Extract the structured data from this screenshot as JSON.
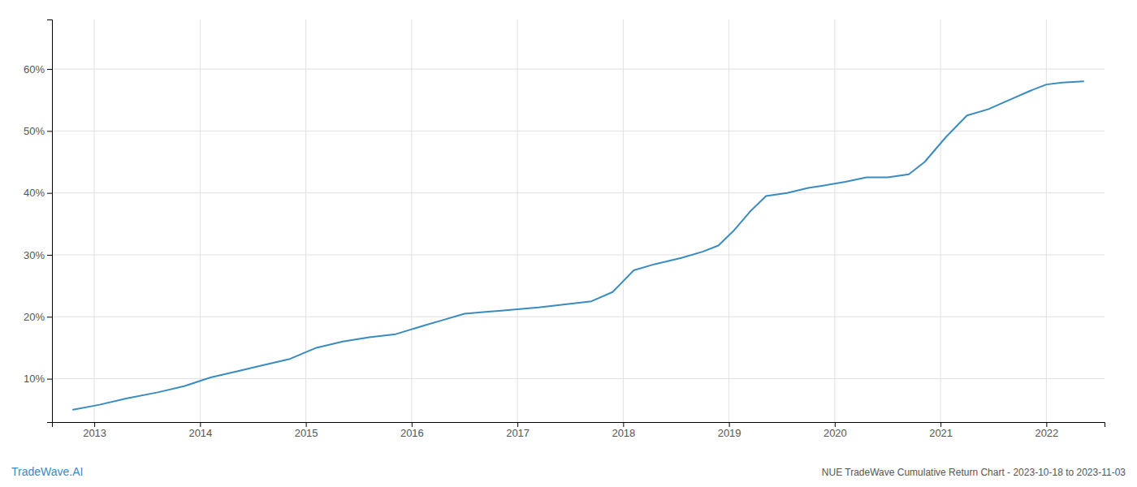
{
  "chart_data": {
    "type": "line",
    "title": "NUE TradeWave Cumulative Return Chart - 2023-10-18 to 2023-11-03",
    "annotations": [
      "TradeWave.AI"
    ],
    "x": [
      2012.8,
      2013.05,
      2013.3,
      2013.6,
      2013.85,
      2014.1,
      2014.35,
      2014.6,
      2014.85,
      2015.1,
      2015.35,
      2015.6,
      2015.85,
      2016.1,
      2016.3,
      2016.5,
      2016.7,
      2016.85,
      2017.0,
      2017.2,
      2017.45,
      2017.7,
      2017.9,
      2018.1,
      2018.3,
      2018.55,
      2018.75,
      2018.9,
      2019.05,
      2019.2,
      2019.35,
      2019.55,
      2019.75,
      2019.9,
      2020.1,
      2020.3,
      2020.5,
      2020.7,
      2020.85,
      2021.05,
      2021.25,
      2021.45,
      2021.65,
      2021.85,
      2022.0,
      2022.15,
      2022.35
    ],
    "values": [
      5.0,
      5.8,
      6.8,
      7.8,
      8.8,
      10.2,
      11.2,
      12.2,
      13.2,
      15.0,
      16.0,
      16.7,
      17.2,
      18.5,
      19.5,
      20.5,
      20.8,
      21.0,
      21.2,
      21.5,
      22.0,
      22.5,
      24.0,
      27.5,
      28.5,
      29.5,
      30.5,
      31.5,
      34.0,
      37.0,
      39.5,
      40.0,
      40.8,
      41.2,
      41.8,
      42.5,
      42.5,
      43.0,
      45.0,
      49.0,
      52.5,
      53.5,
      55.0,
      56.5,
      57.5,
      57.8,
      58.0
    ],
    "color": "#3a8bbf",
    "xlim": [
      2012.6,
      2022.55
    ],
    "xticks": [
      2013,
      2014,
      2015,
      2016,
      2017,
      2018,
      2019,
      2020,
      2021,
      2022
    ],
    "ylim": [
      3,
      68
    ],
    "yticks": [
      {
        "value": 10,
        "label": "10%"
      },
      {
        "value": 20,
        "label": "20%"
      },
      {
        "value": 30,
        "label": "30%"
      },
      {
        "value": 40,
        "label": "40%"
      },
      {
        "value": 50,
        "label": "50%"
      },
      {
        "value": 60,
        "label": "60%"
      }
    ],
    "grid": true
  }
}
